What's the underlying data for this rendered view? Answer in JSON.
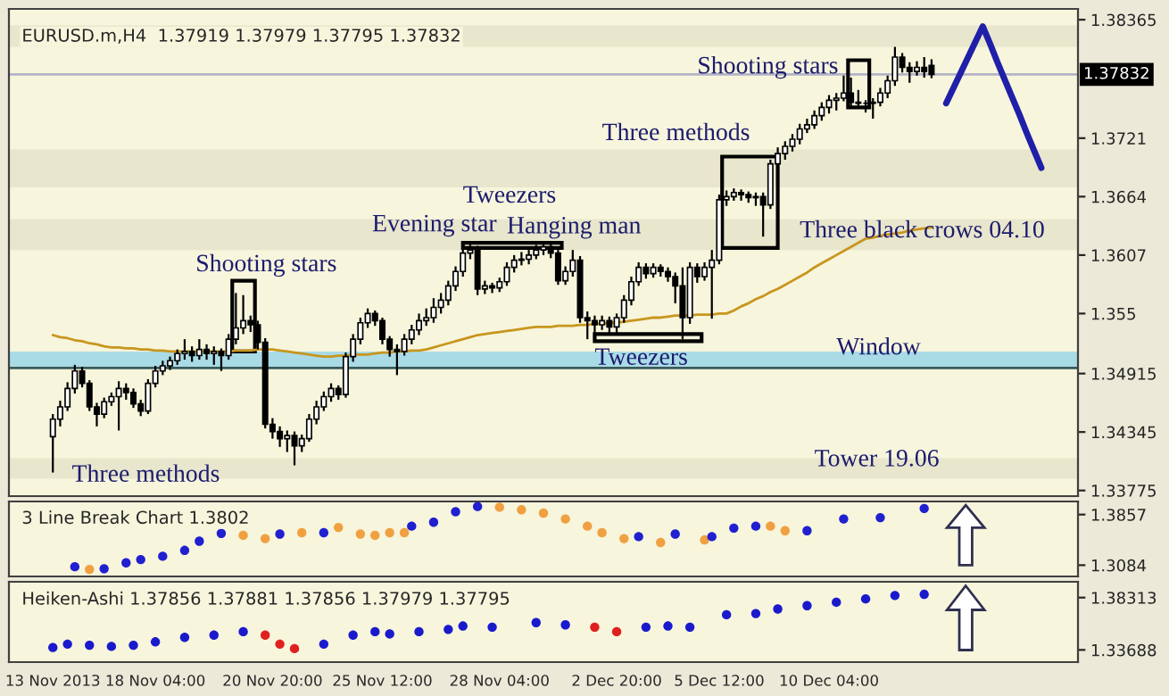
{
  "chart_data": [
    {
      "type": "candlestick",
      "title": "EURUSD.m,H4  1.37919 1.37979 1.37795 1.37832",
      "categories": [
        null,
        null,
        null,
        null,
        null,
        null,
        null,
        null,
        null,
        null,
        null,
        null,
        null,
        null,
        null,
        null,
        null,
        null,
        null,
        null,
        null,
        null,
        null,
        null,
        null,
        null,
        null,
        null,
        null,
        null,
        null,
        null,
        null,
        null,
        null,
        null,
        null,
        null,
        null,
        null,
        null,
        null,
        null,
        null,
        null,
        null,
        null,
        null,
        null,
        null,
        null,
        null,
        null,
        null,
        null,
        null,
        null,
        null,
        null,
        null,
        null,
        null,
        null,
        null,
        null,
        null,
        null,
        null,
        null,
        null,
        null,
        null,
        null,
        null,
        null,
        null,
        null,
        null,
        null,
        null,
        null,
        null,
        null,
        null,
        null,
        null,
        null,
        null,
        null,
        null,
        null,
        null,
        null,
        null,
        null,
        null,
        null,
        null,
        null,
        null,
        null,
        null,
        null,
        null,
        null,
        null,
        null,
        null,
        null,
        null,
        null,
        null,
        null,
        null,
        null,
        null,
        null,
        null,
        null,
        null,
        null,
        null,
        null,
        null,
        null,
        null,
        null,
        null,
        null,
        null,
        null,
        null,
        null,
        null,
        null,
        null
      ],
      "ohlc": [
        [
          1.343,
          1.3452,
          1.3395,
          1.3447
        ],
        [
          1.3447,
          1.3465,
          1.344,
          1.3459
        ],
        [
          1.3459,
          1.3483,
          1.3455,
          1.3477
        ],
        [
          1.3477,
          1.35,
          1.3472,
          1.3494
        ],
        [
          1.3494,
          1.3498,
          1.3478,
          1.3482
        ],
        [
          1.3482,
          1.3485,
          1.3455,
          1.3459
        ],
        [
          1.3459,
          1.3463,
          1.344,
          1.3452
        ],
        [
          1.3452,
          1.3468,
          1.3448,
          1.3464
        ],
        [
          1.3464,
          1.3473,
          1.346,
          1.3469
        ],
        [
          1.3469,
          1.3484,
          1.3436,
          1.3477
        ],
        [
          1.3477,
          1.3482,
          1.3466,
          1.3473
        ],
        [
          1.3473,
          1.3477,
          1.3458,
          1.3462
        ],
        [
          1.3462,
          1.3466,
          1.345,
          1.3455
        ],
        [
          1.3455,
          1.3486,
          1.3452,
          1.3482
        ],
        [
          1.3482,
          1.3499,
          1.3478,
          1.3494
        ],
        [
          1.3494,
          1.3504,
          1.349,
          1.3499
        ],
        [
          1.3499,
          1.3508,
          1.3495,
          1.3504
        ],
        [
          1.3504,
          1.3515,
          1.35,
          1.3511
        ],
        [
          1.3511,
          1.3525,
          1.3505,
          1.3513
        ],
        [
          1.3513,
          1.3518,
          1.3503,
          1.3509
        ],
        [
          1.3509,
          1.3525,
          1.3505,
          1.3515
        ],
        [
          1.3515,
          1.352,
          1.3505,
          1.3511
        ],
        [
          1.3511,
          1.3518,
          1.35,
          1.3513
        ],
        [
          1.3513,
          1.3516,
          1.3494,
          1.3509
        ],
        [
          1.3509,
          1.353,
          1.3505,
          1.3525
        ],
        [
          1.3525,
          1.357,
          1.352,
          1.3536
        ],
        [
          1.3536,
          1.3568,
          1.353,
          1.3543
        ],
        [
          1.3543,
          1.3548,
          1.3532,
          1.3539
        ],
        [
          1.3539,
          1.3543,
          1.3515,
          1.3522
        ],
        [
          1.3522,
          1.3526,
          1.3438,
          1.3442
        ],
        [
          1.3442,
          1.3448,
          1.3428,
          1.3435
        ],
        [
          1.3435,
          1.344,
          1.342,
          1.3428
        ],
        [
          1.3428,
          1.3436,
          1.3415,
          1.3431
        ],
        [
          1.3431,
          1.3435,
          1.3402,
          1.3421
        ],
        [
          1.3421,
          1.3432,
          1.3415,
          1.3428
        ],
        [
          1.3428,
          1.3452,
          1.3425,
          1.3447
        ],
        [
          1.3447,
          1.3465,
          1.3442,
          1.3459
        ],
        [
          1.3459,
          1.3474,
          1.3455,
          1.3469
        ],
        [
          1.3469,
          1.3482,
          1.3464,
          1.3477
        ],
        [
          1.3477,
          1.348,
          1.3466,
          1.3471
        ],
        [
          1.3471,
          1.3512,
          1.3468,
          1.3508
        ],
        [
          1.3508,
          1.353,
          1.3503,
          1.3525
        ],
        [
          1.3525,
          1.3546,
          1.352,
          1.3541
        ],
        [
          1.3541,
          1.3555,
          1.3536,
          1.355
        ],
        [
          1.355,
          1.3553,
          1.3538,
          1.3543
        ],
        [
          1.3543,
          1.3546,
          1.352,
          1.3525
        ],
        [
          1.3525,
          1.3528,
          1.3508,
          1.3515
        ],
        [
          1.3515,
          1.352,
          1.349,
          1.3513
        ],
        [
          1.3513,
          1.353,
          1.3509,
          1.3525
        ],
        [
          1.3525,
          1.3539,
          1.352,
          1.3534
        ],
        [
          1.3534,
          1.355,
          1.3529,
          1.3543
        ],
        [
          1.3543,
          1.3555,
          1.3538,
          1.3546
        ],
        [
          1.3546,
          1.3565,
          1.3541,
          1.3556
        ],
        [
          1.3556,
          1.357,
          1.355,
          1.3563
        ],
        [
          1.3563,
          1.3582,
          1.3558,
          1.3577
        ],
        [
          1.3577,
          1.3596,
          1.3572,
          1.3591
        ],
        [
          1.3591,
          1.3615,
          1.3586,
          1.3609
        ],
        [
          1.3609,
          1.3618,
          1.3603,
          1.3612
        ],
        [
          1.3612,
          1.3616,
          1.3568,
          1.3574
        ],
        [
          1.3574,
          1.3582,
          1.3569,
          1.3577
        ],
        [
          1.3577,
          1.358,
          1.357,
          1.3575
        ],
        [
          1.3575,
          1.3585,
          1.3571,
          1.3581
        ],
        [
          1.3581,
          1.36,
          1.3577,
          1.3595
        ],
        [
          1.3595,
          1.3607,
          1.359,
          1.3602
        ],
        [
          1.3602,
          1.361,
          1.3597,
          1.3603
        ],
        [
          1.3603,
          1.3612,
          1.3598,
          1.3607
        ],
        [
          1.3607,
          1.3617,
          1.3603,
          1.3612
        ],
        [
          1.3612,
          1.3618,
          1.3607,
          1.3615
        ],
        [
          1.3615,
          1.3618,
          1.3604,
          1.3609
        ],
        [
          1.3609,
          1.3612,
          1.3578,
          1.3582
        ],
        [
          1.3582,
          1.3596,
          1.3578,
          1.3591
        ],
        [
          1.3591,
          1.3612,
          1.3586,
          1.3602
        ],
        [
          1.3602,
          1.3606,
          1.3541,
          1.3546
        ],
        [
          1.3546,
          1.3552,
          1.3525,
          1.3543
        ],
        [
          1.3543,
          1.3548,
          1.3525,
          1.3539
        ],
        [
          1.3539,
          1.3548,
          1.3534,
          1.3543
        ],
        [
          1.3543,
          1.3547,
          1.353,
          1.3537
        ],
        [
          1.3537,
          1.355,
          1.353,
          1.3546
        ],
        [
          1.3546,
          1.3568,
          1.3541,
          1.3563
        ],
        [
          1.3563,
          1.3586,
          1.3558,
          1.3581
        ],
        [
          1.3581,
          1.36,
          1.3577,
          1.3595
        ],
        [
          1.3595,
          1.3599,
          1.3584,
          1.3589
        ],
        [
          1.3589,
          1.3599,
          1.3585,
          1.3595
        ],
        [
          1.3595,
          1.3598,
          1.3586,
          1.3591
        ],
        [
          1.3591,
          1.3595,
          1.3581,
          1.3586
        ],
        [
          1.3586,
          1.359,
          1.356,
          1.3577
        ],
        [
          1.3577,
          1.3595,
          1.3525,
          1.3546
        ],
        [
          1.3546,
          1.36,
          1.354,
          1.3595
        ],
        [
          1.3595,
          1.3599,
          1.358,
          1.3586
        ],
        [
          1.3586,
          1.36,
          1.3582,
          1.3595
        ],
        [
          1.3595,
          1.3612,
          1.3545,
          1.3602
        ],
        [
          1.3602,
          1.3666,
          1.3598,
          1.3661
        ],
        [
          1.3661,
          1.367,
          1.3655,
          1.3664
        ],
        [
          1.3664,
          1.3672,
          1.366,
          1.3668
        ],
        [
          1.3668,
          1.3671,
          1.366,
          1.3666
        ],
        [
          1.3666,
          1.3669,
          1.3658,
          1.3663
        ],
        [
          1.3663,
          1.3668,
          1.3655,
          1.3664
        ],
        [
          1.3664,
          1.3668,
          1.3625,
          1.3656
        ],
        [
          1.3656,
          1.37,
          1.3652,
          1.3696
        ],
        [
          1.3696,
          1.3712,
          1.369,
          1.3706
        ],
        [
          1.3706,
          1.3718,
          1.37,
          1.3713
        ],
        [
          1.3713,
          1.3725,
          1.3708,
          1.372
        ],
        [
          1.372,
          1.3735,
          1.3715,
          1.373
        ],
        [
          1.373,
          1.374,
          1.3726,
          1.3734
        ],
        [
          1.3734,
          1.3748,
          1.373,
          1.3743
        ],
        [
          1.3743,
          1.3756,
          1.3738,
          1.3751
        ],
        [
          1.3751,
          1.3763,
          1.3745,
          1.3758
        ],
        [
          1.3758,
          1.3765,
          1.3748,
          1.376
        ],
        [
          1.376,
          1.3782,
          1.3757,
          1.3765
        ],
        [
          1.3765,
          1.378,
          1.3752,
          1.3756
        ],
        [
          1.3756,
          1.3768,
          1.375,
          1.3755
        ],
        [
          1.3755,
          1.3758,
          1.3746,
          1.3755
        ],
        [
          1.3755,
          1.376,
          1.374,
          1.3756
        ],
        [
          1.3756,
          1.377,
          1.3752,
          1.3765
        ],
        [
          1.3765,
          1.3782,
          1.376,
          1.3777
        ],
        [
          1.3777,
          1.381,
          1.3772,
          1.38
        ],
        [
          1.38,
          1.3804,
          1.3785,
          1.379
        ],
        [
          1.379,
          1.3795,
          1.3775,
          1.3786
        ],
        [
          1.3786,
          1.3796,
          1.3782,
          1.379
        ],
        [
          1.379,
          1.38,
          1.378,
          1.3786
        ],
        [
          1.37919,
          1.37979,
          1.37795,
          1.37832
        ],
        null,
        null,
        null,
        null,
        null,
        null,
        null,
        null,
        null,
        null,
        null,
        null,
        null,
        null,
        null
      ],
      "series": [
        {
          "type": "line",
          "color": "#c8961e",
          "values": [
            1.3529,
            1.3527,
            1.3526,
            1.3524,
            1.3523,
            1.3521,
            1.352,
            1.3518,
            1.3517,
            1.3517,
            1.3516,
            1.3516,
            1.3515,
            1.3515,
            1.3514,
            1.3514,
            1.3513,
            1.3513,
            1.3513,
            1.3513,
            1.3513,
            1.3513,
            1.3513,
            1.3513,
            1.3513,
            1.3514,
            1.3514,
            1.3514,
            1.3515,
            1.3515,
            1.3515,
            1.3514,
            1.3513,
            1.3512,
            1.3511,
            1.351,
            1.3509,
            1.3508,
            1.3508,
            1.3509,
            1.3509,
            1.351,
            1.351,
            1.351,
            1.3511,
            1.3512,
            1.3512,
            1.3513,
            1.3513,
            1.3514,
            1.3514,
            1.3515,
            1.3517,
            1.3519,
            1.3521,
            1.3523,
            1.3525,
            1.3527,
            1.3529,
            1.353,
            1.3531,
            1.3532,
            1.3533,
            1.3534,
            1.3535,
            1.3536,
            1.3537,
            1.3537,
            1.3537,
            1.3538,
            1.3538,
            1.3538,
            1.3539,
            1.3539,
            1.354,
            1.354,
            1.3541,
            1.3541,
            1.3542,
            1.3543,
            1.3544,
            1.3545,
            1.3546,
            1.3546,
            1.3547,
            1.3548,
            1.3548,
            1.3548,
            1.3549,
            1.3549,
            1.3549,
            1.355,
            1.355,
            1.3553,
            1.3557,
            1.356,
            1.3564,
            1.3567,
            1.3571,
            1.3574,
            1.3578,
            1.3582,
            1.3586,
            1.359,
            1.3595,
            1.3599,
            1.3603,
            1.3607,
            1.3611,
            1.3615,
            1.3619,
            1.3623,
            1.3624,
            1.3626,
            1.3627,
            1.3628,
            1.3629,
            1.3631,
            1.3632,
            1.3633,
            1.3634,
            null,
            null,
            null,
            null,
            null,
            null,
            null,
            null,
            null,
            null,
            null,
            null,
            null,
            null,
            null
          ]
        },
        {
          "type": "line",
          "color": "#1f1fa8",
          "values": [
            null,
            null,
            null,
            null,
            null,
            null,
            null,
            null,
            null,
            null,
            null,
            null,
            null,
            null,
            null,
            null,
            null,
            null,
            null,
            null,
            null,
            null,
            null,
            null,
            null,
            null,
            null,
            null,
            null,
            null,
            null,
            null,
            null,
            null,
            null,
            null,
            null,
            null,
            null,
            null,
            null,
            null,
            null,
            null,
            null,
            null,
            null,
            null,
            null,
            null,
            null,
            null,
            null,
            null,
            null,
            null,
            null,
            null,
            null,
            null,
            null,
            null,
            null,
            null,
            null,
            null,
            null,
            null,
            null,
            null,
            null,
            null,
            null,
            null,
            null,
            null,
            null,
            null,
            null,
            null,
            null,
            null,
            null,
            null,
            null,
            null,
            null,
            null,
            null,
            null,
            null,
            null,
            null,
            null,
            null,
            null,
            null,
            null,
            null,
            null,
            null,
            null,
            null,
            null,
            null,
            null,
            null,
            null,
            null,
            null,
            null,
            null,
            null,
            null,
            null,
            null,
            null,
            null,
            null,
            null,
            null,
            null,
            1.3755,
            1.377,
            1.3785,
            1.38,
            1.3815,
            1.383,
            1.3813,
            1.3795,
            1.3778,
            1.3761,
            1.3744,
            1.3726,
            1.3709,
            1.3692
          ]
        }
      ],
      "ylim": [
        1.3372,
        1.3847
      ],
      "yticks": [
        1.38365,
        1.3721,
        1.3664,
        1.3607,
        1.355,
        1.34915,
        1.34345,
        1.33775
      ],
      "tick_labels": "y",
      "bands": [
        {
          "axis": "y",
          "from": 1.381,
          "to": 1.3831,
          "color": "#e8e6cc"
        },
        {
          "axis": "y",
          "from": 1.3673,
          "to": 1.371,
          "color": "#e8e6cc"
        },
        {
          "axis": "y",
          "from": 1.3612,
          "to": 1.3642,
          "color": "#e8e6cc"
        },
        {
          "axis": "y",
          "from": 1.3389,
          "to": 1.3409,
          "color": "#e8e6cc"
        },
        {
          "axis": "y",
          "from": 1.3497,
          "to": 1.3513,
          "color": "#a9dbe6"
        }
      ],
      "ref_lines": [
        {
          "axis": "y",
          "value": 1.37832,
          "label": "1.37832",
          "color": "#b4b4c8"
        },
        {
          "axis": "y",
          "value": 1.3497,
          "color": "#3a5a5a"
        }
      ],
      "annotations": [
        "Three methods",
        "Shooting stars",
        "Evening star",
        "Tweezers",
        "Hanging man",
        "Tweezers",
        "Three methods",
        "Shooting stars",
        "Three black crows 04.10",
        "Window",
        "Tower 19.06"
      ]
    },
    {
      "type": "scatter",
      "title": "3 Line Break Chart 1.3802",
      "marker": "circle",
      "categories": [
        null,
        null,
        null,
        null,
        null,
        null,
        null,
        null,
        null,
        null,
        null,
        null,
        null,
        null,
        null,
        null,
        null,
        null,
        null,
        null,
        null,
        null,
        null,
        null,
        null,
        null,
        null,
        null,
        null,
        null,
        null,
        null,
        null,
        null,
        null,
        null,
        null,
        null,
        null,
        null,
        null,
        null,
        null,
        null,
        null,
        null,
        null,
        null,
        null,
        null,
        null,
        null,
        null,
        null,
        null,
        null,
        null,
        null,
        null,
        null,
        null,
        null,
        null,
        null,
        null,
        null,
        null,
        null,
        null,
        null,
        null,
        null,
        null,
        null,
        null,
        null,
        null,
        null,
        null,
        null,
        null,
        null,
        null,
        null,
        null,
        null,
        null,
        null,
        null,
        null,
        null,
        null,
        null,
        null,
        null,
        null,
        null,
        null,
        null,
        null,
        null,
        null,
        null,
        null,
        null,
        null,
        null,
        null,
        null,
        null,
        null,
        null,
        null,
        null,
        null,
        null,
        null,
        null,
        null,
        null,
        null,
        null,
        null,
        null,
        null,
        null,
        null,
        null,
        null,
        null,
        null,
        null,
        null,
        null,
        null,
        null
      ],
      "values": [
        null,
        null,
        null,
        1.306,
        null,
        1.302,
        null,
        1.303,
        null,
        null,
        1.312,
        null,
        1.317,
        null,
        null,
        1.322,
        null,
        null,
        1.331,
        null,
        1.345,
        null,
        null,
        1.357,
        null,
        null,
        1.354,
        null,
        null,
        1.349,
        null,
        1.356,
        null,
        null,
        1.358,
        null,
        null,
        1.358,
        null,
        1.366,
        null,
        null,
        1.356,
        null,
        1.354,
        null,
        1.358,
        null,
        1.358,
        1.368,
        null,
        null,
        1.374,
        null,
        null,
        1.39,
        null,
        null,
        1.398,
        null,
        null,
        1.397,
        null,
        null,
        1.393,
        null,
        null,
        1.388,
        null,
        null,
        1.379,
        null,
        null,
        1.368,
        null,
        1.358,
        null,
        null,
        1.349,
        null,
        1.352,
        null,
        null,
        1.343,
        null,
        1.356,
        null,
        null,
        null,
        1.347,
        1.352,
        null,
        null,
        1.365,
        null,
        null,
        1.368,
        null,
        1.368,
        null,
        1.361,
        null,
        null,
        1.361,
        null,
        null,
        null,
        null,
        1.379,
        null,
        null,
        null,
        null,
        1.381,
        null,
        null,
        null,
        null,
        null,
        1.395,
        null,
        null,
        null,
        null,
        null,
        null,
        null,
        null,
        null,
        null,
        null,
        null,
        null,
        null,
        null,
        null
      ],
      "colors": [
        null,
        null,
        null,
        "#2020d0",
        null,
        "#f0a040",
        null,
        "#2020d0",
        null,
        null,
        "#2020d0",
        null,
        "#2020d0",
        null,
        null,
        "#2020d0",
        null,
        null,
        "#2020d0",
        null,
        "#2020d0",
        null,
        null,
        "#2020d0",
        null,
        null,
        "#f0a040",
        null,
        null,
        "#f0a040",
        null,
        "#2020d0",
        null,
        null,
        "#f0a040",
        null,
        null,
        "#2020d0",
        null,
        "#f0a040",
        null,
        null,
        "#f0a040",
        null,
        "#f0a040",
        null,
        "#f0a040",
        null,
        "#f0a040",
        "#2020d0",
        null,
        null,
        "#2020d0",
        null,
        null,
        "#2020d0",
        null,
        null,
        "#2020d0",
        null,
        null,
        "#f0a040",
        null,
        null,
        "#f0a040",
        null,
        null,
        "#f0a040",
        null,
        null,
        "#f0a040",
        null,
        null,
        "#f0a040",
        null,
        "#f0a040",
        null,
        null,
        "#f0a040",
        null,
        "#2020d0",
        null,
        null,
        "#f0a040",
        null,
        "#2020d0",
        null,
        null,
        null,
        "#f0a040",
        "#2020d0",
        null,
        null,
        "#2020d0",
        null,
        null,
        "#2020d0",
        null,
        "#f0a040",
        null,
        "#f0a040",
        null,
        null,
        "#2020d0",
        null,
        null,
        null,
        null,
        "#2020d0",
        null,
        null,
        null,
        null,
        "#2020d0",
        null,
        null,
        null,
        null,
        null,
        "#2020d0",
        null,
        null,
        null,
        null,
        null,
        null,
        null,
        null,
        null,
        null,
        null,
        null,
        null,
        null,
        null,
        null
      ],
      "ylim": [
        1.2912,
        1.4057
      ],
      "yticks": [
        1.3857,
        1.3084
      ],
      "tick_labels": "y"
    },
    {
      "type": "scatter",
      "title": "Heiken-Ashi 1.37856 1.37881 1.37856 1.37979 1.37795",
      "marker": "circle",
      "categories": [
        "13 Nov 2013",
        null,
        null,
        null,
        null,
        null,
        null,
        null,
        null,
        null,
        null,
        null,
        null,
        null,
        "18 Nov 04:00",
        null,
        null,
        null,
        null,
        null,
        null,
        null,
        null,
        null,
        null,
        null,
        null,
        null,
        null,
        null,
        "20 Nov 20:00",
        null,
        null,
        null,
        null,
        null,
        null,
        null,
        null,
        null,
        null,
        null,
        null,
        null,
        null,
        "25 Nov 12:00",
        null,
        null,
        null,
        null,
        null,
        null,
        null,
        null,
        null,
        null,
        null,
        null,
        null,
        null,
        null,
        "28 Nov 04:00",
        null,
        null,
        null,
        null,
        null,
        null,
        null,
        null,
        null,
        null,
        null,
        null,
        null,
        null,
        null,
        "2 Dec 20:00",
        null,
        null,
        null,
        null,
        null,
        null,
        null,
        null,
        null,
        null,
        null,
        null,
        null,
        "5 Dec 12:00",
        null,
        null,
        null,
        null,
        null,
        null,
        null,
        null,
        null,
        null,
        null,
        null,
        null,
        null,
        "10 Dec 04:00",
        null,
        null,
        null,
        null,
        null,
        null,
        null,
        null,
        null,
        null,
        null,
        null,
        null,
        null,
        null,
        null,
        null,
        null,
        null,
        null,
        null,
        null,
        null,
        null,
        null,
        null,
        null,
        null,
        null
      ],
      "values": [
        1.339,
        null,
        1.342,
        null,
        null,
        1.341,
        null,
        null,
        1.34,
        null,
        null,
        1.341,
        null,
        null,
        1.344,
        null,
        null,
        null,
        1.348,
        null,
        null,
        null,
        1.35,
        null,
        null,
        null,
        1.353,
        null,
        null,
        1.35,
        null,
        1.342,
        null,
        1.338,
        null,
        null,
        null,
        1.342,
        null,
        null,
        null,
        1.35,
        null,
        null,
        1.353,
        null,
        1.351,
        null,
        null,
        null,
        1.353,
        null,
        null,
        null,
        1.355,
        null,
        1.358,
        null,
        null,
        null,
        1.357,
        null,
        null,
        null,
        null,
        null,
        1.361,
        null,
        null,
        null,
        1.359,
        null,
        null,
        null,
        1.357,
        null,
        null,
        1.353,
        null,
        null,
        null,
        1.357,
        null,
        null,
        1.358,
        null,
        null,
        1.357,
        null,
        null,
        null,
        null,
        1.368,
        null,
        null,
        null,
        1.369,
        null,
        null,
        1.373,
        null,
        null,
        null,
        1.376,
        null,
        null,
        null,
        1.379,
        null,
        null,
        null,
        1.382,
        null,
        null,
        null,
        1.385,
        null,
        null,
        null,
        1.386,
        null,
        null,
        null,
        null,
        null,
        null,
        null,
        null,
        null,
        null,
        null,
        null,
        null,
        null,
        null,
        null
      ],
      "colors": [
        "#1a1acc",
        null,
        "#1a1acc",
        null,
        null,
        "#1a1acc",
        null,
        null,
        "#1a1acc",
        null,
        null,
        "#1a1acc",
        null,
        null,
        "#1a1acc",
        null,
        null,
        null,
        "#1a1acc",
        null,
        null,
        null,
        "#1a1acc",
        null,
        null,
        null,
        "#1a1acc",
        null,
        null,
        "#e02020",
        null,
        "#e02020",
        null,
        "#e02020",
        null,
        null,
        null,
        "#1a1acc",
        null,
        null,
        null,
        "#1a1acc",
        null,
        null,
        "#1a1acc",
        null,
        "#1a1acc",
        null,
        null,
        null,
        "#1a1acc",
        null,
        null,
        null,
        "#1a1acc",
        null,
        "#1a1acc",
        null,
        null,
        null,
        "#1a1acc",
        null,
        null,
        null,
        null,
        null,
        "#1a1acc",
        null,
        null,
        null,
        "#1a1acc",
        null,
        null,
        null,
        "#e02020",
        null,
        null,
        "#e02020",
        null,
        null,
        null,
        "#1a1acc",
        null,
        null,
        "#1a1acc",
        null,
        null,
        "#1a1acc",
        null,
        null,
        null,
        null,
        "#1a1acc",
        null,
        null,
        null,
        "#1a1acc",
        null,
        null,
        "#1a1acc",
        null,
        null,
        null,
        "#1a1acc",
        null,
        null,
        null,
        "#1a1acc",
        null,
        null,
        null,
        "#1a1acc",
        null,
        null,
        null,
        "#1a1acc",
        null,
        null,
        null,
        "#1a1acc",
        null,
        null,
        null,
        null,
        null,
        null,
        null,
        null,
        null,
        null,
        null,
        null,
        null,
        null,
        null,
        null
      ],
      "ylim": [
        1.3261,
        1.3971
      ],
      "yticks": [
        1.38313,
        1.33688
      ]
    }
  ]
}
